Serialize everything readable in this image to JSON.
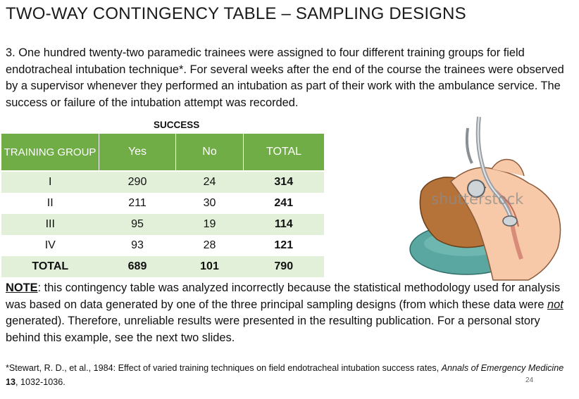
{
  "title": "TWO-WAY CONTINGENCY TABLE – SAMPLING DESIGNS",
  "intro": "3.  One hundred twenty-two paramedic trainees were assigned to four different training groups for field endotracheal intubation technique*.  For several weeks after the end of the course the trainees were observed by a supervisor whenever they performed an intubation as part of their work with the ambulance service.  The success or failure of the intubation attempt was recorded.",
  "table": {
    "super_header": "SUCCESS",
    "headers": {
      "group": "TRAINING GROUP",
      "yes": "Yes",
      "no": "No",
      "total": "TOTAL"
    },
    "rows": [
      {
        "group": "I",
        "yes": "290",
        "no": "24",
        "total": "314"
      },
      {
        "group": "II",
        "yes": "211",
        "no": "30",
        "total": "241"
      },
      {
        "group": "III",
        "yes": "95",
        "no": "19",
        "total": "114"
      },
      {
        "group": "IV",
        "yes": "93",
        "no": "28",
        "total": "121"
      },
      {
        "group": "TOTAL",
        "yes": "689",
        "no": "101",
        "total": "790"
      }
    ]
  },
  "illustration": {
    "watermark": "shutterstock",
    "icon": "intubation-illustration-icon"
  },
  "note": {
    "label": "NOTE",
    "part1": ":  this contingency table was analyzed incorrectly because the statistical methodology used for analysis was based on data generated by one of the three principal sampling designs (from which these data were ",
    "emphasis": "not",
    "part2": " generated).  Therefore, unreliable results were presented in the resulting publication.  For a personal story behind this example, see the next two slides."
  },
  "footnote": {
    "text1": "*Stewart, R. D., et al., 1984:  Effect of varied training techniques on field endotracheal intubation success rates, ",
    "journal": "Annals of Emergency Medicine",
    "volume": " 13",
    "pages": ", 1032-1036."
  },
  "page_number": "24"
}
